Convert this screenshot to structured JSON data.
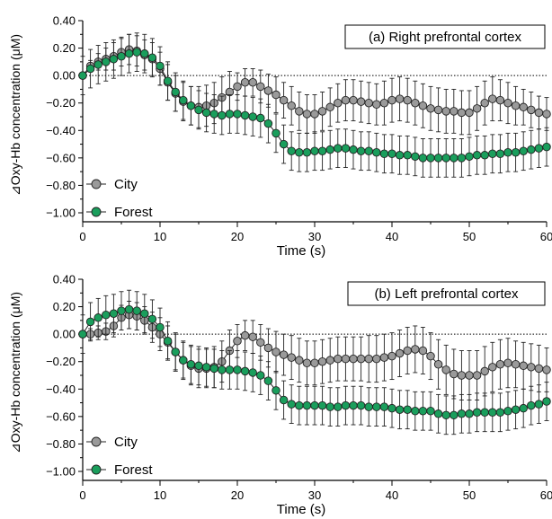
{
  "chart_data": [
    {
      "type": "line",
      "title": "(a) Right prefrontal cortex",
      "xlabel": "Time (s)",
      "ylabel": "⊿Oxy-Hb concentration (μM)",
      "xlim": [
        0,
        60
      ],
      "ylim": [
        -1.0,
        0.4
      ],
      "xticks": [
        "0",
        "10",
        "20",
        "30",
        "40",
        "50",
        "60"
      ],
      "yticks": [
        "0.40",
        "0.20",
        "0.00",
        "−0.20",
        "−0.40",
        "−0.60",
        "−0.80",
        "−1.00"
      ],
      "reference_line": 0,
      "legend_position": "left",
      "x": [
        0,
        1,
        2,
        3,
        4,
        5,
        6,
        7,
        8,
        9,
        10,
        11,
        12,
        13,
        14,
        15,
        16,
        17,
        18,
        19,
        20,
        21,
        22,
        23,
        24,
        25,
        26,
        27,
        28,
        29,
        30,
        31,
        32,
        33,
        34,
        35,
        36,
        37,
        38,
        39,
        40,
        41,
        42,
        43,
        44,
        45,
        46,
        47,
        48,
        49,
        50,
        51,
        52,
        53,
        54,
        55,
        56,
        57,
        58,
        59,
        60
      ],
      "series": [
        {
          "name": "City",
          "color": "#9a9a9a",
          "values": [
            0.0,
            0.07,
            0.1,
            0.12,
            0.14,
            0.17,
            0.19,
            0.18,
            0.15,
            0.12,
            0.05,
            -0.05,
            -0.13,
            -0.19,
            -0.22,
            -0.23,
            -0.22,
            -0.2,
            -0.16,
            -0.12,
            -0.08,
            -0.05,
            -0.05,
            -0.08,
            -0.11,
            -0.14,
            -0.18,
            -0.22,
            -0.26,
            -0.28,
            -0.28,
            -0.26,
            -0.23,
            -0.2,
            -0.18,
            -0.18,
            -0.19,
            -0.2,
            -0.21,
            -0.2,
            -0.18,
            -0.17,
            -0.18,
            -0.2,
            -0.22,
            -0.24,
            -0.25,
            -0.26,
            -0.26,
            -0.27,
            -0.27,
            -0.24,
            -0.2,
            -0.17,
            -0.18,
            -0.2,
            -0.22,
            -0.23,
            -0.25,
            -0.27,
            -0.28
          ],
          "errors": [
            0.01,
            0.04,
            0.06,
            0.08,
            0.1,
            0.1,
            0.11,
            0.11,
            0.11,
            0.12,
            0.12,
            0.13,
            0.13,
            0.14,
            0.14,
            0.15,
            0.15,
            0.15,
            0.15,
            0.15,
            0.1,
            0.1,
            0.1,
            0.12,
            0.12,
            0.13,
            0.13,
            0.14,
            0.14,
            0.14,
            0.14,
            0.14,
            0.14,
            0.14,
            0.15,
            0.15,
            0.15,
            0.15,
            0.15,
            0.16,
            0.16,
            0.16,
            0.16,
            0.16,
            0.16,
            0.16,
            0.16,
            0.16,
            0.16,
            0.16,
            0.16,
            0.16,
            0.16,
            0.16,
            0.15,
            0.15,
            0.14,
            0.13,
            0.13,
            0.12,
            0.12
          ]
        },
        {
          "name": "Forest",
          "color": "#1a9e5c",
          "values": [
            0.0,
            0.05,
            0.08,
            0.1,
            0.12,
            0.14,
            0.16,
            0.17,
            0.16,
            0.13,
            0.07,
            -0.04,
            -0.12,
            -0.18,
            -0.22,
            -0.25,
            -0.27,
            -0.28,
            -0.29,
            -0.28,
            -0.28,
            -0.29,
            -0.3,
            -0.31,
            -0.35,
            -0.42,
            -0.5,
            -0.55,
            -0.56,
            -0.56,
            -0.55,
            -0.55,
            -0.54,
            -0.53,
            -0.53,
            -0.54,
            -0.55,
            -0.55,
            -0.56,
            -0.57,
            -0.57,
            -0.58,
            -0.58,
            -0.59,
            -0.6,
            -0.6,
            -0.6,
            -0.6,
            -0.6,
            -0.6,
            -0.59,
            -0.58,
            -0.58,
            -0.57,
            -0.57,
            -0.56,
            -0.56,
            -0.55,
            -0.54,
            -0.53,
            -0.52
          ]
        }
      ]
    },
    {
      "type": "line",
      "title": "(b) Left prefrontal cortex",
      "xlabel": "Time (s)",
      "ylabel": "⊿Oxy-Hb concentration (μM)",
      "xlim": [
        0,
        60
      ],
      "ylim": [
        -1.0,
        0.4
      ],
      "xticks": [
        "0",
        "10",
        "20",
        "30",
        "40",
        "50",
        "60"
      ],
      "yticks": [
        "0.40",
        "0.20",
        "0.00",
        "−0.20",
        "−0.40",
        "−0.60",
        "−0.80",
        "−1.00"
      ],
      "reference_line": 0,
      "legend_position": "left",
      "x": [
        0,
        1,
        2,
        3,
        4,
        5,
        6,
        7,
        8,
        9,
        10,
        11,
        12,
        13,
        14,
        15,
        16,
        17,
        18,
        19,
        20,
        21,
        22,
        23,
        24,
        25,
        26,
        27,
        28,
        29,
        30,
        31,
        32,
        33,
        34,
        35,
        36,
        37,
        38,
        39,
        40,
        41,
        42,
        43,
        44,
        45,
        46,
        47,
        48,
        49,
        50,
        51,
        52,
        53,
        54,
        55,
        56,
        57,
        58,
        59,
        60
      ],
      "series": [
        {
          "name": "City",
          "color": "#9a9a9a",
          "values": [
            0.0,
            0.0,
            0.01,
            0.02,
            0.06,
            0.12,
            0.14,
            0.13,
            0.1,
            0.05,
            0.0,
            -0.06,
            -0.13,
            -0.19,
            -0.23,
            -0.25,
            -0.25,
            -0.24,
            -0.2,
            -0.12,
            -0.05,
            -0.01,
            -0.02,
            -0.06,
            -0.1,
            -0.13,
            -0.15,
            -0.17,
            -0.19,
            -0.21,
            -0.21,
            -0.2,
            -0.19,
            -0.18,
            -0.18,
            -0.18,
            -0.18,
            -0.18,
            -0.18,
            -0.17,
            -0.16,
            -0.14,
            -0.12,
            -0.11,
            -0.12,
            -0.16,
            -0.22,
            -0.26,
            -0.29,
            -0.3,
            -0.3,
            -0.3,
            -0.27,
            -0.24,
            -0.22,
            -0.21,
            -0.22,
            -0.23,
            -0.24,
            -0.25,
            -0.26
          ],
          "errors": [
            0.02,
            0.04,
            0.05,
            0.06,
            0.08,
            0.09,
            0.1,
            0.1,
            0.1,
            0.11,
            0.12,
            0.12,
            0.13,
            0.13,
            0.14,
            0.14,
            0.14,
            0.15,
            0.15,
            0.15,
            0.12,
            0.11,
            0.12,
            0.13,
            0.14,
            0.15,
            0.15,
            0.16,
            0.16,
            0.16,
            0.16,
            0.16,
            0.16,
            0.16,
            0.16,
            0.16,
            0.16,
            0.17,
            0.17,
            0.17,
            0.17,
            0.17,
            0.17,
            0.17,
            0.17,
            0.17,
            0.18,
            0.18,
            0.18,
            0.18,
            0.18,
            0.18,
            0.18,
            0.18,
            0.18,
            0.18,
            0.17,
            0.17,
            0.17,
            0.17,
            0.16
          ]
        },
        {
          "name": "Forest",
          "color": "#1a9e5c",
          "values": [
            0.0,
            0.09,
            0.12,
            0.14,
            0.15,
            0.17,
            0.18,
            0.17,
            0.15,
            0.11,
            0.05,
            -0.05,
            -0.13,
            -0.19,
            -0.22,
            -0.23,
            -0.24,
            -0.25,
            -0.26,
            -0.26,
            -0.26,
            -0.27,
            -0.28,
            -0.3,
            -0.34,
            -0.41,
            -0.48,
            -0.51,
            -0.52,
            -0.52,
            -0.52,
            -0.52,
            -0.53,
            -0.53,
            -0.52,
            -0.52,
            -0.52,
            -0.53,
            -0.53,
            -0.53,
            -0.54,
            -0.55,
            -0.55,
            -0.56,
            -0.56,
            -0.56,
            -0.58,
            -0.59,
            -0.59,
            -0.58,
            -0.58,
            -0.57,
            -0.57,
            -0.57,
            -0.57,
            -0.56,
            -0.55,
            -0.54,
            -0.52,
            -0.51,
            -0.49
          ]
        }
      ]
    }
  ]
}
